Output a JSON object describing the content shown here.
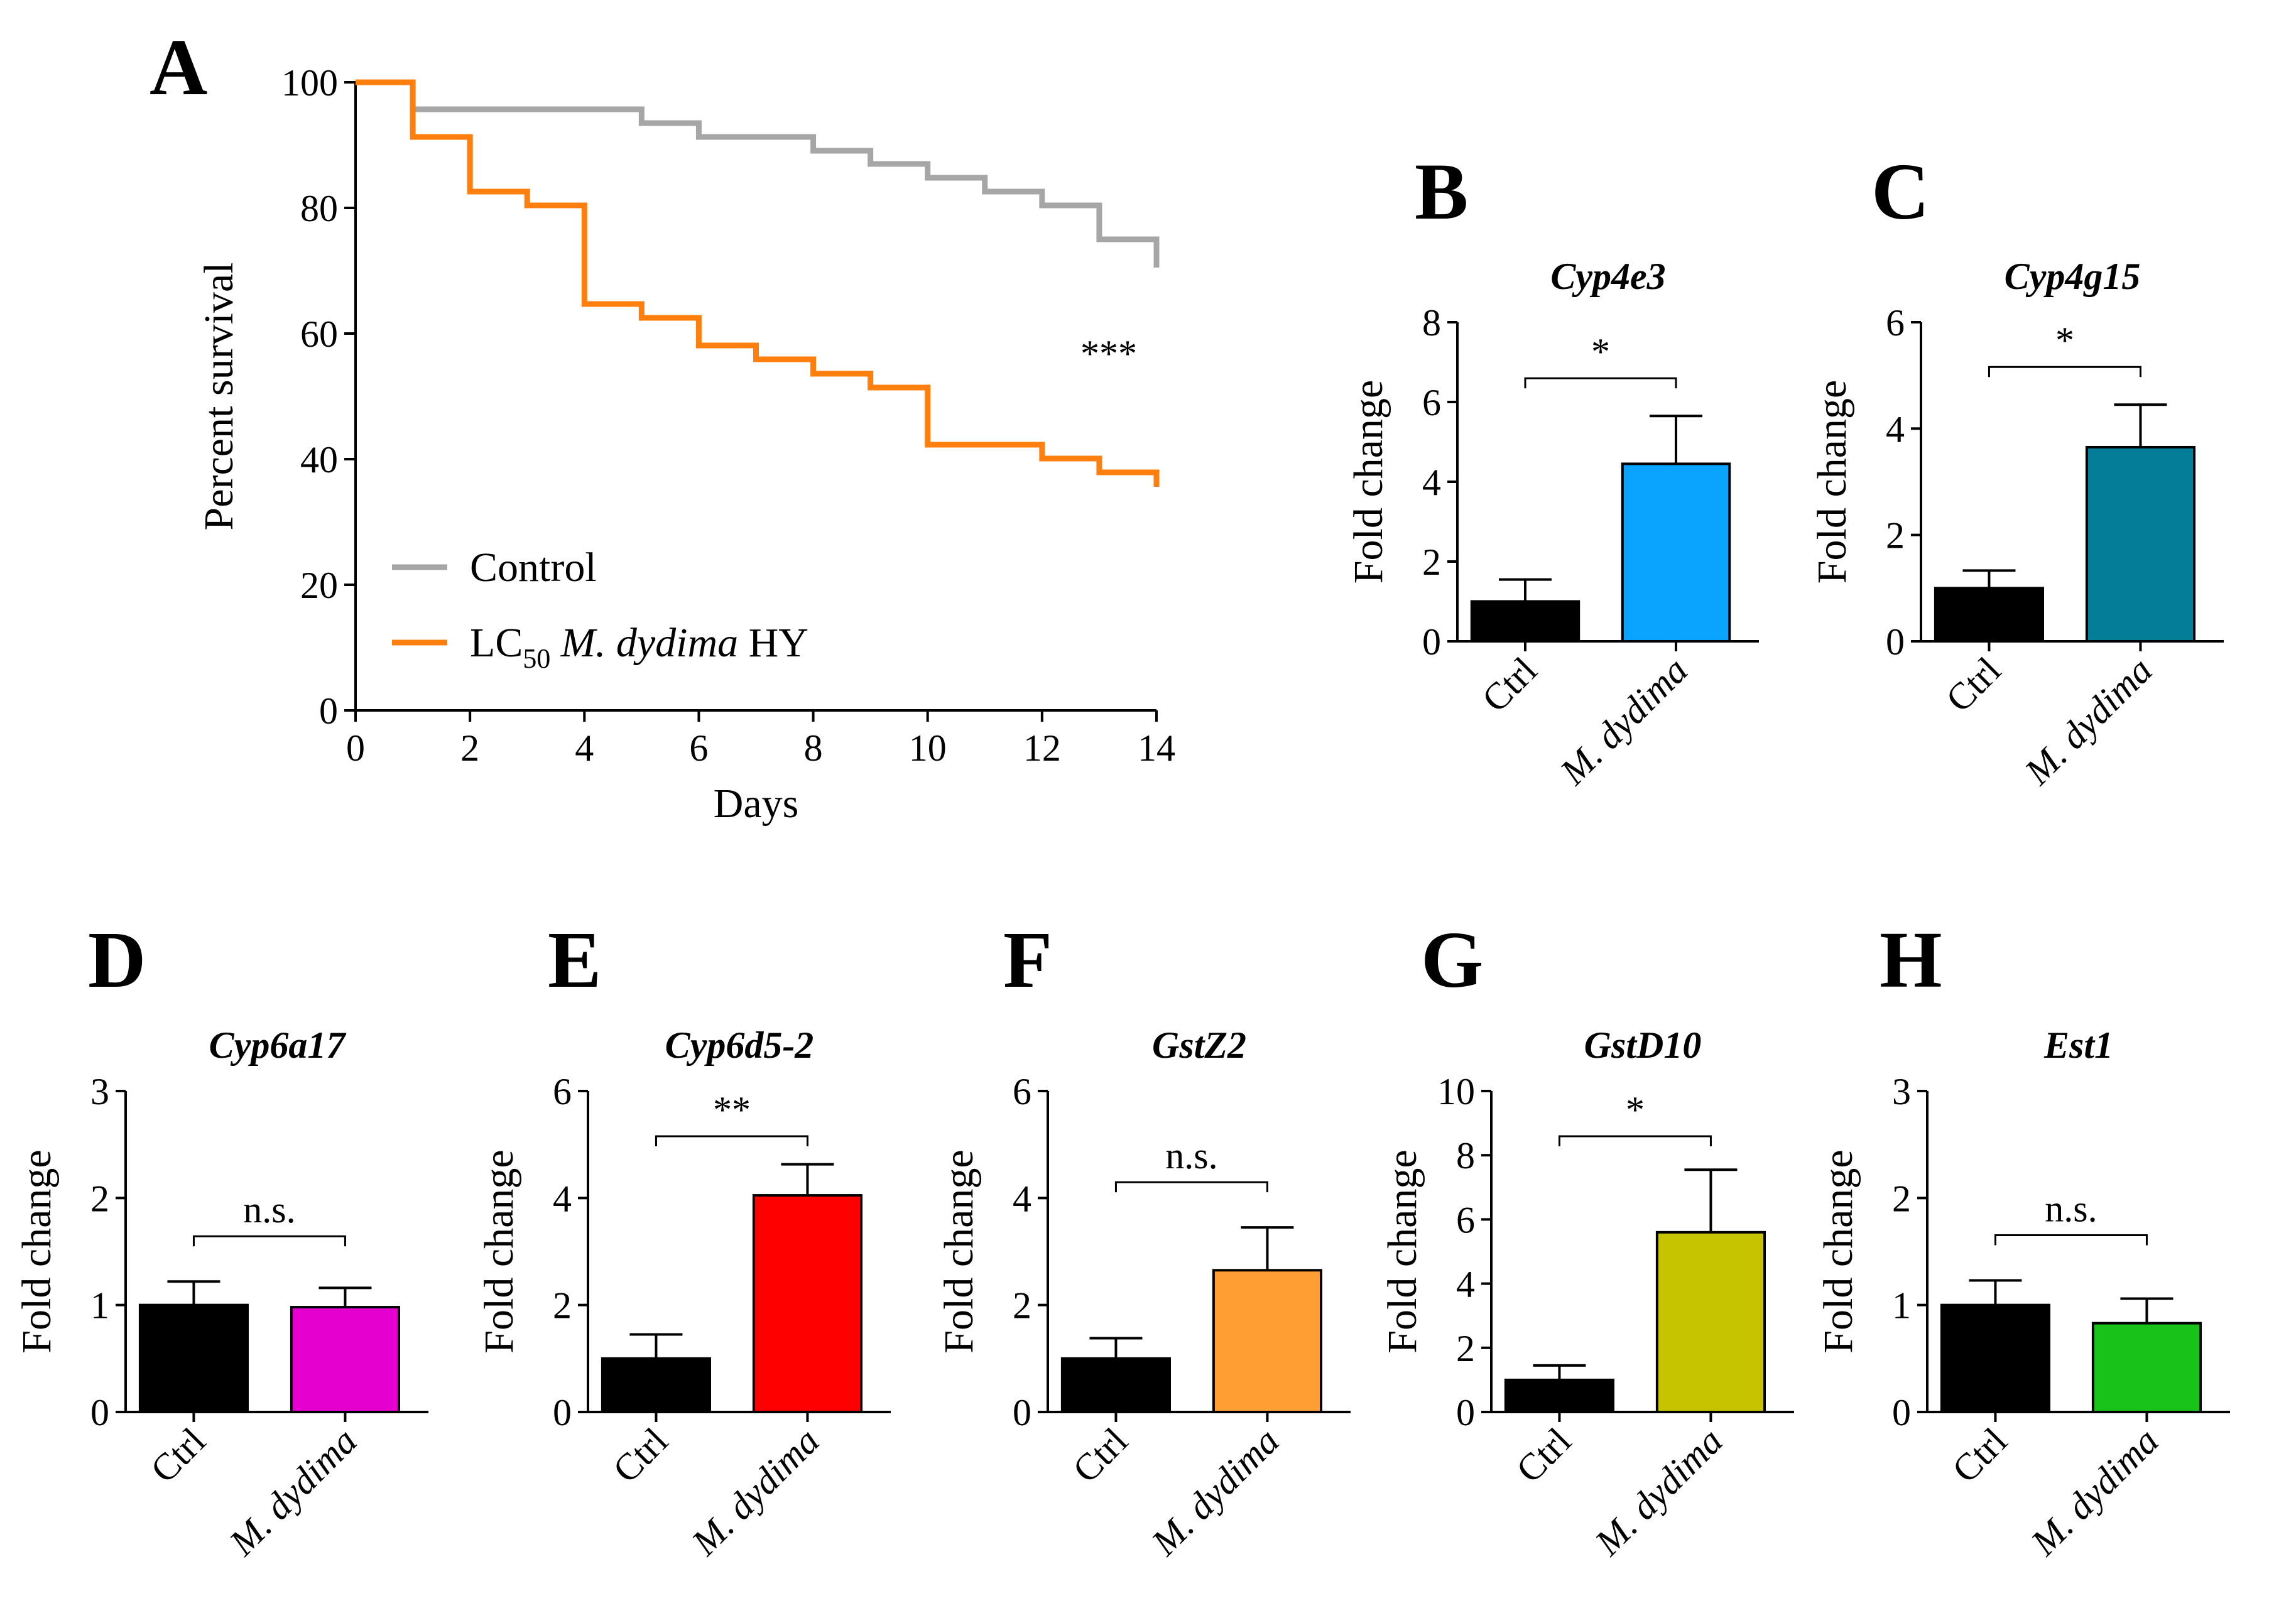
{
  "chart_data": [
    {
      "panel": "A",
      "type": "line",
      "step": true,
      "xlabel": "Days",
      "ylabel": "Percent survival",
      "xlim": [
        0,
        14
      ],
      "ylim": [
        0,
        100
      ],
      "xticks": [
        0,
        2,
        4,
        6,
        8,
        10,
        12,
        14
      ],
      "yticks": [
        0,
        20,
        40,
        60,
        80,
        100
      ],
      "significance": "***",
      "legend": {
        "placement": "bottom-left",
        "entries": [
          {
            "label": "Control",
            "color": "#A6A6A6"
          },
          {
            "label_prefix": "LC",
            "label_sub": "50",
            "label_italic": " M. dydima",
            "label_suffix": " HY",
            "color": "#FF7F0E"
          }
        ]
      },
      "series": [
        {
          "name": "Control",
          "color": "#A6A6A6",
          "x": [
            0,
            1,
            5,
            6,
            8,
            9,
            10,
            11,
            12,
            13,
            14,
            14
          ],
          "y": [
            100,
            95.7,
            93.5,
            91.3,
            89.1,
            87,
            84.8,
            82.6,
            80.4,
            75,
            75,
            70.5
          ]
        },
        {
          "name": "LC50 M. dydima HY",
          "color": "#FF7F0E",
          "x": [
            0,
            1,
            2,
            3,
            4,
            5,
            6,
            7,
            8,
            9,
            10,
            12,
            13,
            14,
            14
          ],
          "y": [
            100,
            91.3,
            82.6,
            80.4,
            64.7,
            62.5,
            58.1,
            55.9,
            53.6,
            51.4,
            42.3,
            40.1,
            37.9,
            37.9,
            35.6
          ]
        }
      ]
    },
    {
      "panel": "B",
      "type": "bar",
      "title": "Cyp4e3",
      "ylabel": "Fold change",
      "ylim": [
        0,
        8
      ],
      "yticks": [
        0,
        2,
        4,
        6,
        8
      ],
      "categories": [
        "Ctrl",
        "M. dydima"
      ],
      "values": [
        1.0,
        4.45
      ],
      "errors": [
        0.55,
        1.2
      ],
      "colors": [
        "#000000",
        "#0AA4FF"
      ],
      "significance": "*"
    },
    {
      "panel": "C",
      "type": "bar",
      "title": "Cyp4g15",
      "ylabel": "Fold change",
      "ylim": [
        0,
        6
      ],
      "yticks": [
        0,
        2,
        4,
        6
      ],
      "categories": [
        "Ctrl",
        "M. dydima"
      ],
      "values": [
        1.0,
        3.65
      ],
      "errors": [
        0.33,
        0.8
      ],
      "colors": [
        "#000000",
        "#037D98"
      ],
      "significance": "*"
    },
    {
      "panel": "D",
      "type": "bar",
      "title": "Cyp6a17",
      "ylabel": "Fold change",
      "ylim": [
        0,
        3
      ],
      "yticks": [
        0,
        1,
        2,
        3
      ],
      "categories": [
        "Ctrl",
        "M. dydima"
      ],
      "values": [
        1.0,
        0.98
      ],
      "errors": [
        0.22,
        0.18
      ],
      "colors": [
        "#000000",
        "#E600CF"
      ],
      "significance": "n.s."
    },
    {
      "panel": "E",
      "type": "bar",
      "title": "Cyp6d5-2",
      "ylabel": "Fold change",
      "ylim": [
        0,
        6
      ],
      "yticks": [
        0,
        2,
        4,
        6
      ],
      "categories": [
        "Ctrl",
        "M. dydima"
      ],
      "values": [
        1.0,
        4.05
      ],
      "errors": [
        0.45,
        0.58
      ],
      "colors": [
        "#000000",
        "#FF0000"
      ],
      "significance": "**"
    },
    {
      "panel": "F",
      "type": "bar",
      "title": "GstZ2",
      "ylabel": "Fold change",
      "ylim": [
        0,
        6
      ],
      "yticks": [
        0,
        2,
        4,
        6
      ],
      "categories": [
        "Ctrl",
        "M. dydima"
      ],
      "values": [
        1.0,
        2.65
      ],
      "errors": [
        0.38,
        0.8
      ],
      "colors": [
        "#000000",
        "#FF9F33"
      ],
      "significance": "n.s."
    },
    {
      "panel": "G",
      "type": "bar",
      "title": "GstD10",
      "ylabel": "Fold change",
      "ylim": [
        0,
        10
      ],
      "yticks": [
        0,
        2,
        4,
        6,
        8,
        10
      ],
      "categories": [
        "Ctrl",
        "M. dydima"
      ],
      "values": [
        1.0,
        5.6
      ],
      "errors": [
        0.45,
        1.95
      ],
      "colors": [
        "#000000",
        "#C6C400"
      ],
      "significance": "*"
    },
    {
      "panel": "H",
      "type": "bar",
      "title": "Est1",
      "ylabel": "Fold change",
      "ylim": [
        0,
        3
      ],
      "yticks": [
        0,
        1,
        2,
        3
      ],
      "categories": [
        "Ctrl",
        "M. dydima"
      ],
      "values": [
        1.0,
        0.83
      ],
      "errors": [
        0.23,
        0.23
      ],
      "colors": [
        "#000000",
        "#19C219"
      ],
      "significance": "n.s."
    }
  ]
}
